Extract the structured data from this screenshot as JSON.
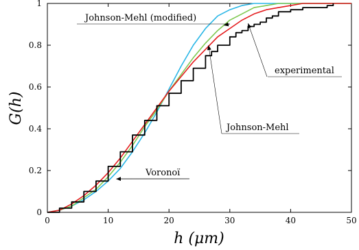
{
  "chart_data": {
    "type": "line",
    "xlabel": "h (μm)",
    "ylabel": "G(h)",
    "xlim": [
      0,
      50
    ],
    "ylim": [
      0,
      1
    ],
    "xticks": [
      0,
      10,
      20,
      30,
      40,
      50
    ],
    "yticks": [
      0,
      0.2,
      0.4,
      0.6,
      0.8,
      1
    ],
    "ytick_labels": [
      "0",
      "0.2",
      "0.4",
      "0.6",
      "0.8",
      "1"
    ],
    "grid": false,
    "legend": "none (curves identified by callout annotations)",
    "colors": {
      "experimental": "#000000",
      "johnson_mehl": "#e41a1c",
      "johnson_mehl_modified": "#7ec850",
      "voronoi": "#29b6e6"
    },
    "series": [
      {
        "name": "experimental",
        "color": "#000000",
        "x": [
          0,
          2,
          4,
          6,
          8,
          10,
          12,
          14,
          16,
          18,
          20,
          22,
          24,
          26,
          27,
          28,
          30,
          31,
          32,
          33,
          34,
          35,
          36,
          37,
          38,
          39,
          40,
          41,
          42,
          43,
          44,
          45,
          46,
          47
        ],
        "values": [
          0,
          0.02,
          0.05,
          0.1,
          0.15,
          0.22,
          0.29,
          0.37,
          0.44,
          0.51,
          0.57,
          0.63,
          0.69,
          0.75,
          0.77,
          0.8,
          0.84,
          0.86,
          0.87,
          0.89,
          0.9,
          0.91,
          0.93,
          0.94,
          0.96,
          0.96,
          0.97,
          0.97,
          0.98,
          0.98,
          0.98,
          0.98,
          0.99,
          1.0
        ]
      },
      {
        "name": "Johnson-Mehl",
        "color": "#e41a1c",
        "x": [
          0,
          2,
          4,
          6,
          8,
          10,
          12,
          14,
          16,
          18,
          20,
          22,
          24,
          26,
          28,
          30,
          32,
          34,
          36,
          38,
          40,
          42,
          44,
          46,
          50
        ],
        "values": [
          0,
          0.01,
          0.04,
          0.08,
          0.13,
          0.19,
          0.26,
          0.34,
          0.42,
          0.5,
          0.58,
          0.65,
          0.72,
          0.78,
          0.84,
          0.88,
          0.92,
          0.95,
          0.97,
          0.98,
          0.99,
          1.0,
          1.0,
          1.0,
          1.0
        ]
      },
      {
        "name": "Johnson-Mehl (modified)",
        "color": "#7ec850",
        "x": [
          0,
          2,
          4,
          6,
          8,
          10,
          12,
          14,
          16,
          18,
          20,
          22,
          24,
          26,
          28,
          30,
          32,
          34,
          36,
          38,
          40,
          42,
          50
        ],
        "values": [
          0,
          0.01,
          0.03,
          0.07,
          0.11,
          0.17,
          0.24,
          0.32,
          0.41,
          0.49,
          0.58,
          0.66,
          0.74,
          0.81,
          0.87,
          0.92,
          0.95,
          0.98,
          0.99,
          1.0,
          1.0,
          1.0,
          1.0
        ]
      },
      {
        "name": "Voronoï",
        "color": "#29b6e6",
        "x": [
          0,
          2,
          4,
          6,
          8,
          10,
          12,
          14,
          16,
          18,
          20,
          22,
          24,
          26,
          28,
          30,
          32,
          34,
          36,
          38,
          40,
          50
        ],
        "values": [
          0,
          0.01,
          0.03,
          0.06,
          0.1,
          0.15,
          0.21,
          0.29,
          0.38,
          0.48,
          0.59,
          0.7,
          0.8,
          0.88,
          0.94,
          0.97,
          0.99,
          1.0,
          1.0,
          1.0,
          1.0,
          1.0
        ]
      }
    ],
    "annotations": [
      {
        "text": "Johnson-Mehl (modified)",
        "target_series": "Johnson-Mehl (modified)"
      },
      {
        "text": "experimental",
        "target_series": "experimental"
      },
      {
        "text": "Johnson-Mehl",
        "target_series": "Johnson-Mehl"
      },
      {
        "text": "Voronoï",
        "target_series": "Voronoï"
      }
    ]
  }
}
